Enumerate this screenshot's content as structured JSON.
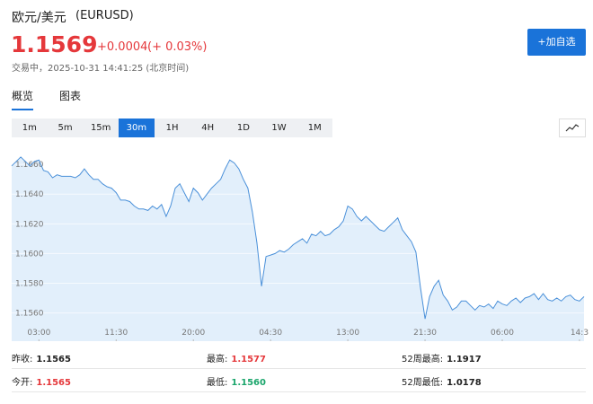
{
  "header": {
    "title": "欧元/美元",
    "code": "(EURUSD)",
    "price": "1.1569",
    "change": "+0.0004",
    "change_pct": "(+ 0.03%)",
    "status": "交易中，2025-10-31 14:41:25 (北京时间)",
    "button": "+加自选"
  },
  "tabs": [
    "概览",
    "图表"
  ],
  "ranges": [
    "1m",
    "5m",
    "15m",
    "30m",
    "1H",
    "4H",
    "1D",
    "1W",
    "1M"
  ],
  "active_range": 3,
  "chart_data": {
    "type": "area",
    "color": "#4a90d9",
    "fill": "#e2effb",
    "values": [
      1.1659,
      1.1662,
      1.1665,
      1.1662,
      1.1659,
      1.1662,
      1.1663,
      1.1656,
      1.1655,
      1.1651,
      1.1653,
      1.1652,
      1.1652,
      1.1652,
      1.1651,
      1.1653,
      1.1657,
      1.1653,
      1.165,
      1.165,
      1.1647,
      1.1645,
      1.1644,
      1.1641,
      1.1636,
      1.1636,
      1.1635,
      1.1632,
      1.163,
      1.163,
      1.1629,
      1.1632,
      1.163,
      1.1633,
      1.1625,
      1.1632,
      1.1644,
      1.1647,
      1.1641,
      1.1635,
      1.1644,
      1.1641,
      1.1636,
      1.164,
      1.1644,
      1.1647,
      1.165,
      1.1657,
      1.1663,
      1.1661,
      1.1657,
      1.165,
      1.1644,
      1.1628,
      1.1607,
      1.1578,
      1.1598,
      1.1599,
      1.16,
      1.1602,
      1.1601,
      1.1603,
      1.1606,
      1.1608,
      1.161,
      1.1607,
      1.1613,
      1.1612,
      1.1615,
      1.1612,
      1.1613,
      1.1616,
      1.1618,
      1.1622,
      1.1632,
      1.163,
      1.1625,
      1.1622,
      1.1625,
      1.1622,
      1.1619,
      1.1616,
      1.1615,
      1.1618,
      1.1621,
      1.1624,
      1.1616,
      1.1612,
      1.1608,
      1.1601,
      1.1577,
      1.1556,
      1.1571,
      1.1578,
      1.1582,
      1.1572,
      1.1568,
      1.1562,
      1.1564,
      1.1568,
      1.1568,
      1.1565,
      1.1562,
      1.1565,
      1.1564,
      1.1566,
      1.1563,
      1.1568,
      1.1566,
      1.1565,
      1.1568,
      1.157,
      1.1567,
      1.157,
      1.1571,
      1.1573,
      1.1569,
      1.1573,
      1.1569,
      1.1568,
      1.157,
      1.1568,
      1.1571,
      1.1572,
      1.1569,
      1.1568,
      1.1571
    ],
    "xlim": [
      0,
      126
    ],
    "xticks": [
      {
        "value": 6,
        "label": "03:00"
      },
      {
        "value": 23,
        "label": "11:30"
      },
      {
        "value": 40,
        "label": "20:00"
      },
      {
        "value": 57,
        "label": "04:30"
      },
      {
        "value": 74,
        "label": "13:00"
      },
      {
        "value": 91,
        "label": "21:30"
      },
      {
        "value": 108,
        "label": "06:00"
      },
      {
        "value": 125,
        "label": "14:3"
      }
    ],
    "ylim": [
      1.1541,
      1.1674
    ],
    "yticks": [
      {
        "value": 1.156,
        "label": "1.1560"
      },
      {
        "value": 1.158,
        "label": "1.1580"
      },
      {
        "value": 1.16,
        "label": "1.1600"
      },
      {
        "value": 1.162,
        "label": "1.1620"
      },
      {
        "value": 1.164,
        "label": "1.1640"
      },
      {
        "value": 1.166,
        "label": "1.1660"
      }
    ],
    "grid": true
  },
  "stats": [
    [
      {
        "label": "昨收:",
        "value": "1.1565",
        "color": "#222222"
      },
      {
        "label": "最高:",
        "value": "1.1577",
        "color": "#e5383b"
      },
      {
        "label": "52周最高:",
        "value": "1.1917",
        "color": "#222222"
      }
    ],
    [
      {
        "label": "今开:",
        "value": "1.1565",
        "color": "#e5383b"
      },
      {
        "label": "最低:",
        "value": "1.1560",
        "color": "#1aa56b"
      },
      {
        "label": "52周最低:",
        "value": "1.0178",
        "color": "#222222"
      }
    ]
  ]
}
